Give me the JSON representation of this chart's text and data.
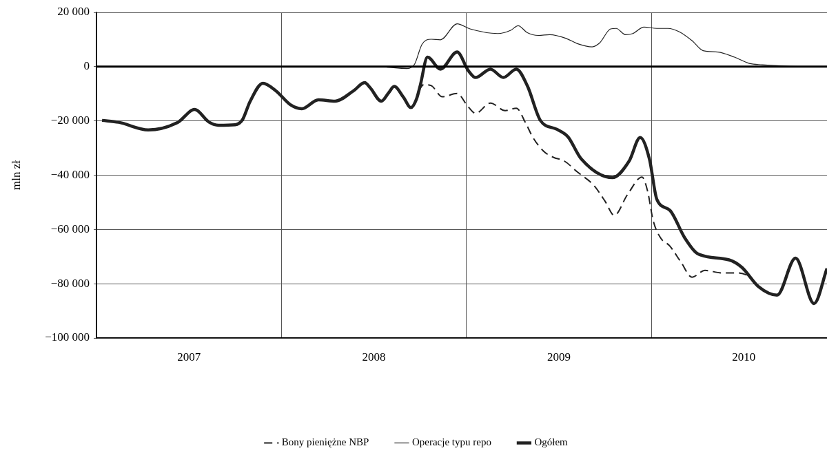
{
  "chart_data": {
    "type": "line",
    "ylabel": "mln zł",
    "xlim": [
      2007,
      2010.95
    ],
    "xticks": [
      {
        "value": 2007,
        "label": null
      },
      {
        "value": 2007.5,
        "label": "2007"
      },
      {
        "value": 2008,
        "label": null
      },
      {
        "value": 2008.5,
        "label": "2008"
      },
      {
        "value": 2009,
        "label": null
      },
      {
        "value": 2009.5,
        "label": "2009"
      },
      {
        "value": 2010,
        "label": null
      },
      {
        "value": 2010.5,
        "label": "2010"
      }
    ],
    "ylim": [
      -100000,
      20000
    ],
    "yticks": [
      {
        "value": -100000,
        "label": "−100 000"
      },
      {
        "value": -80000,
        "label": "−80 000"
      },
      {
        "value": -60000,
        "label": "−60 000"
      },
      {
        "value": -40000,
        "label": "−40 000"
      },
      {
        "value": -20000,
        "label": "−20 000"
      },
      {
        "value": 0,
        "label": "0"
      },
      {
        "value": 20000,
        "label": "20 000"
      }
    ],
    "grid": true,
    "legend": "bottom",
    "marker": "none",
    "ref_lines": [
      {
        "axis": "y",
        "value": 0,
        "color": "#000000"
      }
    ],
    "series": [
      {
        "name": "Bony pieniężne NBP",
        "color": "#222222",
        "line_style": "dashed",
        "x": [
          2008.74,
          2008.77,
          2008.81,
          2008.87,
          2008.95,
          2009.01,
          2009.05,
          2009.13,
          2009.21,
          2009.27,
          2009.32,
          2009.36,
          2009.42,
          2009.47,
          2009.53,
          2009.6,
          2009.69,
          2009.75,
          2009.8,
          2009.87,
          2009.95,
          2009.98,
          2010.01,
          2010.05,
          2010.1,
          2010.16,
          2010.22,
          2010.29,
          2010.38,
          2010.47,
          2010.54,
          2010.58,
          2010.68,
          2010.78,
          2010.88,
          2010.95
        ],
        "values": [
          -9000,
          -6600,
          -7000,
          -11100,
          -9900,
          -14800,
          -17200,
          -13400,
          -16200,
          -15300,
          -20700,
          -26100,
          -31300,
          -33400,
          -34800,
          -38800,
          -43800,
          -49600,
          -54800,
          -47300,
          -40700,
          -45900,
          -56700,
          -63100,
          -66100,
          -72000,
          -77600,
          -75100,
          -76000,
          -76000,
          -77900,
          -81100,
          -84200,
          -70600,
          -87300,
          -74400
        ]
      },
      {
        "name": "Operacje typu repo",
        "color": "#222222",
        "line_style": "solid",
        "x": [
          2008.57,
          2008.68,
          2008.72,
          2008.76,
          2008.81,
          2008.86,
          2008.95,
          2009.02,
          2009.17,
          2009.24,
          2009.28,
          2009.33,
          2009.39,
          2009.45,
          2009.54,
          2009.6,
          2009.68,
          2009.72,
          2009.78,
          2009.81,
          2009.86,
          2009.9,
          2009.96,
          2010.03,
          2010.09,
          2010.15,
          2010.22,
          2010.28,
          2010.36,
          2010.45,
          2010.53,
          2010.6,
          2010.73,
          2010.86
        ],
        "values": [
          -200,
          -700,
          900,
          8200,
          10100,
          9900,
          15800,
          13900,
          12200,
          13400,
          15100,
          12500,
          11500,
          11800,
          10400,
          8500,
          7300,
          8700,
          13900,
          14100,
          11800,
          12200,
          14600,
          14100,
          14100,
          12900,
          9600,
          5900,
          5400,
          3500,
          1200,
          700,
          200,
          0
        ]
      },
      {
        "name": "Ogółem",
        "color": "#222222",
        "line_style": "solid",
        "x": [
          2007.03,
          2007.12,
          2007.28,
          2007.44,
          2007.53,
          2007.61,
          2007.66,
          2007.75,
          2007.79,
          2007.83,
          2007.9,
          2007.97,
          2008.05,
          2008.11,
          2008.2,
          2008.29,
          2008.39,
          2008.45,
          2008.48,
          2008.54,
          2008.58,
          2008.61,
          2008.66,
          2008.7,
          2008.73,
          2008.75,
          2008.79,
          2008.86,
          2008.95,
          2009.01,
          2009.05,
          2009.13,
          2009.2,
          2009.27,
          2009.33,
          2009.4,
          2009.49,
          2009.55,
          2009.62,
          2009.79,
          2009.88,
          2009.94,
          2009.99,
          2010.03,
          2010.1,
          2010.18,
          2010.25,
          2010.42,
          2010.49,
          2010.58,
          2010.68,
          2010.78,
          2010.88,
          2010.95
        ],
        "values": [
          -19800,
          -20500,
          -23300,
          -20500,
          -15800,
          -20500,
          -21600,
          -21400,
          -19500,
          -12900,
          -6100,
          -8900,
          -14100,
          -15500,
          -12200,
          -12700,
          -8900,
          -5900,
          -7800,
          -12700,
          -9600,
          -7300,
          -11300,
          -15100,
          -12000,
          -7100,
          3500,
          -900,
          5400,
          -1400,
          -4000,
          -900,
          -4000,
          -900,
          -7100,
          -19800,
          -23100,
          -25900,
          -33900,
          -40900,
          -34800,
          -26100,
          -34100,
          -48900,
          -52900,
          -63000,
          -68900,
          -71200,
          -74000,
          -81100,
          -84200,
          -70600,
          -87300,
          -74400
        ]
      }
    ]
  }
}
